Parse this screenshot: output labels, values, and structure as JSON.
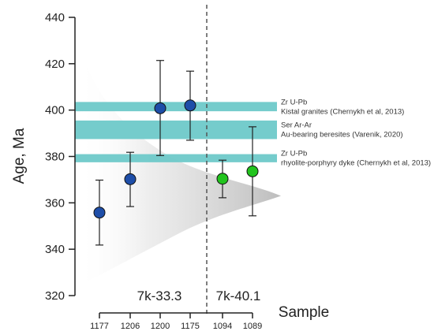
{
  "chart_data": {
    "type": "scatter",
    "ylabel": "Age, Ma",
    "xlabel": "Sample",
    "ylim": [
      320,
      440
    ],
    "yticks": [
      320,
      340,
      360,
      380,
      400,
      420,
      440
    ],
    "categories": [
      "1177",
      "1206",
      "1200",
      "1175",
      "1094",
      "1089"
    ],
    "points": [
      {
        "sample": "1177",
        "age": 355.8,
        "lower": 341.8,
        "upper": 369.8,
        "group": "7k-33.3",
        "color": "#1e4ea8"
      },
      {
        "sample": "1206",
        "age": 370.2,
        "lower": 358.4,
        "upper": 381.8,
        "group": "7k-33.3",
        "color": "#1e4ea8"
      },
      {
        "sample": "1200",
        "age": 400.8,
        "lower": 380.4,
        "upper": 421.4,
        "group": "7k-33.3",
        "color": "#1e4ea8"
      },
      {
        "sample": "1175",
        "age": 402.0,
        "lower": 387.0,
        "upper": 416.8,
        "group": "7k-33.3",
        "color": "#1e4ea8"
      },
      {
        "sample": "1094",
        "age": 370.4,
        "lower": 362.2,
        "upper": 378.4,
        "group": "7k-40.1",
        "color": "#22c41e"
      },
      {
        "sample": "1089",
        "age": 373.6,
        "lower": 354.4,
        "upper": 392.8,
        "group": "7k-40.1",
        "color": "#22c41e"
      }
    ],
    "groups": [
      {
        "label": "7k-33.3"
      },
      {
        "label": "7k-40.1"
      }
    ],
    "reference_bands": [
      {
        "ymin": 399.5,
        "ymax": 403.5,
        "color": "#6ec9c9",
        "lines": [
          "Zr U-Pb",
          "Kistal granites (Chernykh et al, 2013)"
        ]
      },
      {
        "ymin": 387.5,
        "ymax": 395.5,
        "color": "#6ec9c9",
        "lines": [
          "Ser Ar-Ar",
          "Au-bearing beresites (Varenik, 2020)"
        ]
      },
      {
        "ymin": 377.5,
        "ymax": 381.0,
        "color": "#6ec9c9",
        "lines": [
          "Zr U-Pb",
          "rhyolite-porphyry dyke (Chernykh et al, 2013)"
        ]
      }
    ],
    "density_curve": {
      "peak_age": 363,
      "color": "#c8c8c8"
    },
    "grid": false
  }
}
